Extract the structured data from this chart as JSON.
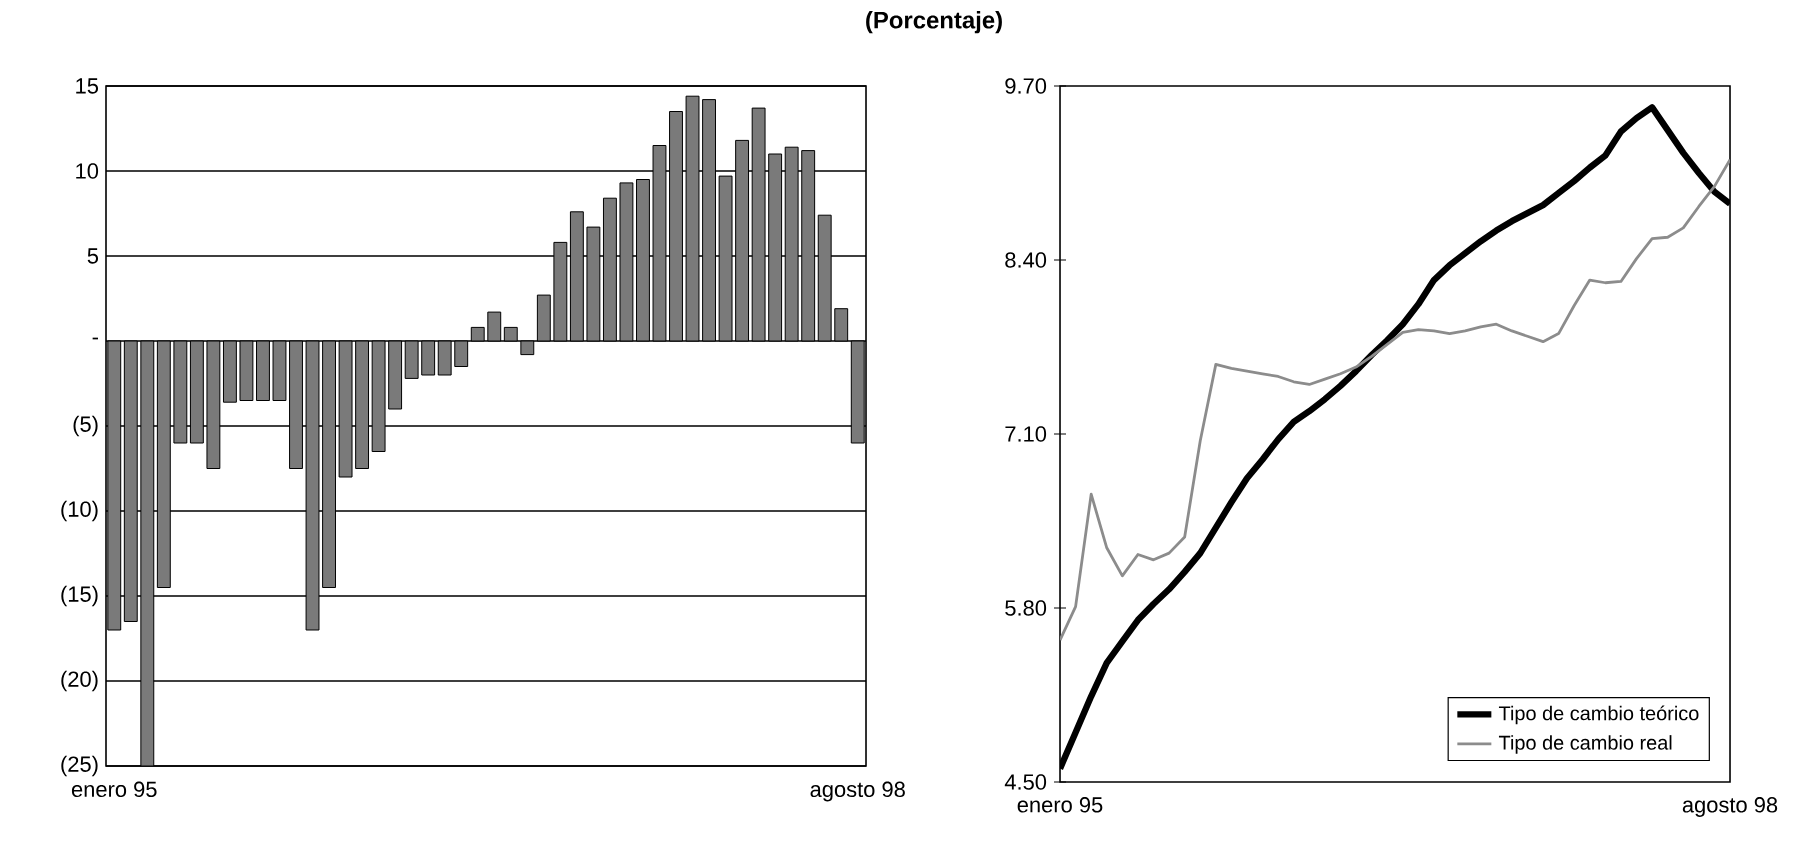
{
  "chart_data": [
    {
      "type": "bar",
      "title": "(Porcentaje)",
      "categories": [
        "enero 95",
        null,
        null,
        null,
        null,
        null,
        null,
        null,
        null,
        null,
        null,
        null,
        null,
        null,
        null,
        null,
        null,
        null,
        null,
        null,
        null,
        null,
        null,
        null,
        null,
        null,
        null,
        null,
        null,
        null,
        null,
        null,
        null,
        null,
        null,
        null,
        null,
        null,
        null,
        null,
        null,
        null,
        null,
        null,
        null,
        "agosto 98"
      ],
      "values": [
        -17,
        -16.5,
        -25,
        -14.5,
        -6,
        -6,
        -7.5,
        -3.6,
        -3.5,
        -3.5,
        -3.5,
        -7.5,
        -17,
        -14.5,
        -8,
        -7.5,
        -6.5,
        -4,
        -2.2,
        -2,
        -2,
        -1.5,
        0.8,
        1.7,
        0.8,
        -0.8,
        2.7,
        5.8,
        7.6,
        6.7,
        8.4,
        9.3,
        9.5,
        11.5,
        13.5,
        14.4,
        14.2,
        9.7,
        11.8,
        13.7,
        11,
        11.4,
        11.2,
        7.4,
        1.9,
        -6
      ],
      "color": "#7a7a7a",
      "ylim": [
        -25,
        15
      ],
      "yticks": [
        15,
        10,
        5,
        {
          "value": 0,
          "label": "-"
        },
        {
          "value": -5,
          "label": "(5)"
        },
        {
          "value": -10,
          "label": "(10)"
        },
        {
          "value": -15,
          "label": "(15)"
        },
        {
          "value": -20,
          "label": "(20)"
        },
        {
          "value": -25,
          "label": "(25)"
        }
      ],
      "grid": "y"
    },
    {
      "type": "line",
      "categories": [
        "enero 95",
        null,
        null,
        null,
        null,
        null,
        null,
        null,
        null,
        null,
        null,
        null,
        null,
        null,
        null,
        null,
        null,
        null,
        null,
        null,
        null,
        null,
        null,
        null,
        null,
        null,
        null,
        null,
        null,
        null,
        null,
        null,
        null,
        null,
        null,
        null,
        null,
        null,
        null,
        null,
        null,
        null,
        null,
        "agosto 98"
      ],
      "ylim": [
        4.5,
        9.7
      ],
      "yticks": [
        {
          "value": 4.5,
          "label": "4.50"
        },
        {
          "value": 5.8,
          "label": "5.80"
        },
        {
          "value": 7.1,
          "label": "7.10"
        },
        {
          "value": 8.4,
          "label": "8.40"
        },
        {
          "value": 9.7,
          "label": "9.70"
        }
      ],
      "legend": "bottom right",
      "series": [
        {
          "name": "Tipo de cambio teórico",
          "color": "#000000",
          "values": [
            4.6,
            4.87,
            5.14,
            5.39,
            5.55,
            5.71,
            5.83,
            5.94,
            6.07,
            6.21,
            6.4,
            6.59,
            6.77,
            6.91,
            7.06,
            7.19,
            7.27,
            7.36,
            7.46,
            7.57,
            7.69,
            7.8,
            7.92,
            8.07,
            8.25,
            8.36,
            8.45,
            8.54,
            8.62,
            8.69,
            8.75,
            8.81,
            8.9,
            8.99,
            9.09,
            9.18,
            9.36,
            9.46,
            9.54,
            9.37,
            9.2,
            9.05,
            8.91,
            8.82
          ]
        },
        {
          "name": "Tipo de cambio real",
          "color": "#8c8c8c",
          "values": [
            5.56,
            5.81,
            6.65,
            6.25,
            6.04,
            6.2,
            6.16,
            6.21,
            6.33,
            7.05,
            7.62,
            7.59,
            7.57,
            7.55,
            7.53,
            7.49,
            7.47,
            7.51,
            7.55,
            7.6,
            7.68,
            7.77,
            7.86,
            7.88,
            7.87,
            7.85,
            7.87,
            7.9,
            7.92,
            7.87,
            7.83,
            7.79,
            7.85,
            8.06,
            8.25,
            8.23,
            8.24,
            8.41,
            8.56,
            8.57,
            8.64,
            8.8,
            8.95,
            9.15
          ]
        }
      ]
    }
  ]
}
